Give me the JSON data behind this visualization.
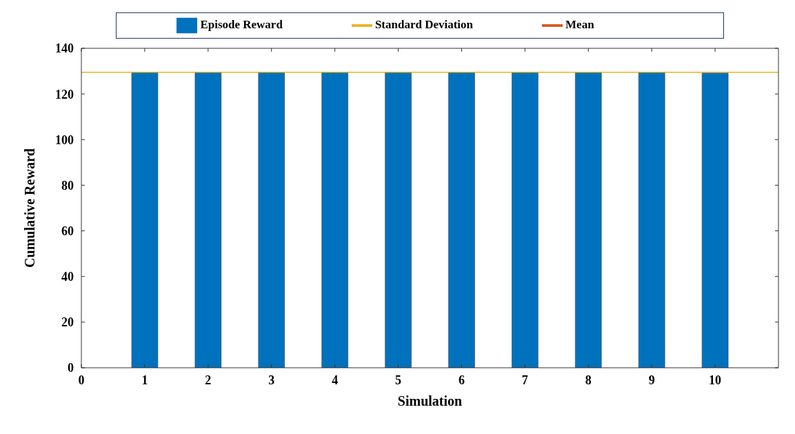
{
  "chart_data": {
    "type": "bar",
    "xlabel": "Simulation",
    "ylabel": "Cumulative Reward",
    "xlim": [
      0,
      11
    ],
    "xticks": [
      0,
      1,
      2,
      3,
      4,
      5,
      6,
      7,
      8,
      9,
      10
    ],
    "ylim": [
      0,
      140
    ],
    "yticks": [
      0,
      20,
      40,
      60,
      80,
      100,
      120,
      140
    ],
    "legend": "top",
    "grid": false,
    "series": [
      {
        "name": "Episode Reward",
        "color": "#0072bd",
        "x": [
          1,
          2,
          3,
          4,
          5,
          6,
          7,
          8,
          9,
          10
        ],
        "values": [
          129.5,
          129.5,
          129.5,
          129.5,
          129.5,
          129.5,
          129.5,
          129.5,
          129.5,
          129.2
        ]
      },
      {
        "name": "Standard Deviation",
        "type": "line",
        "color": "#edb120",
        "x": [
          0,
          11
        ],
        "values": [
          129.5,
          129.5
        ]
      },
      {
        "name": "Mean",
        "type": "line",
        "color": "#d95319"
      }
    ]
  }
}
